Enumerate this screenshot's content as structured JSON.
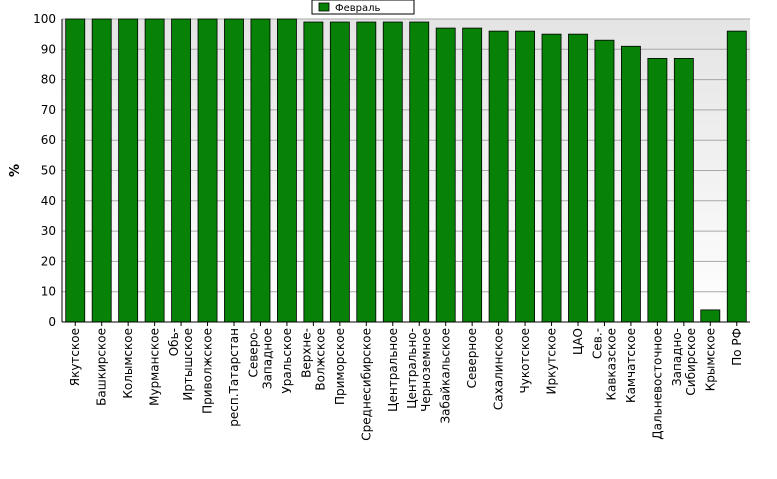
{
  "chart_data": {
    "type": "bar",
    "title": "",
    "xlabel": "",
    "ylabel": "%",
    "ylim": [
      0,
      100
    ],
    "yticks": [
      0,
      10,
      20,
      30,
      40,
      50,
      60,
      70,
      80,
      90,
      100
    ],
    "grid": true,
    "legend_position": "top-center",
    "bar_color": "#078207",
    "categories": [
      [
        "Якутское"
      ],
      [
        "Башкирское"
      ],
      [
        "Колымское"
      ],
      [
        "Мурманское"
      ],
      [
        "Обь-",
        "Иртышское"
      ],
      [
        "Приволжское"
      ],
      [
        "респ.Татарстан"
      ],
      [
        "Северо-",
        "Западное"
      ],
      [
        "Уральское"
      ],
      [
        "Верхне-",
        "Волжское"
      ],
      [
        "Приморское"
      ],
      [
        "Среднесибирское"
      ],
      [
        "Центральное"
      ],
      [
        "Центрально-",
        "Черноземное"
      ],
      [
        "Забайкальское"
      ],
      [
        "Северное"
      ],
      [
        "Сахалинское"
      ],
      [
        "Чукотское"
      ],
      [
        "Иркутское"
      ],
      [
        "ЦАО"
      ],
      [
        "Сев.-",
        "Кавказское"
      ],
      [
        "Камчатское"
      ],
      [
        "Дальневосточное"
      ],
      [
        "Западно-",
        "Сибирское"
      ],
      [
        "Крымское"
      ],
      [
        "По РФ"
      ]
    ],
    "series": [
      {
        "name": "Февраль",
        "color": "#078207",
        "values": [
          100,
          100,
          100,
          100,
          100,
          100,
          100,
          100,
          100,
          99,
          99,
          99,
          99,
          99,
          97,
          97,
          96,
          96,
          95,
          95,
          93,
          91,
          87,
          87,
          4,
          96
        ]
      }
    ]
  }
}
